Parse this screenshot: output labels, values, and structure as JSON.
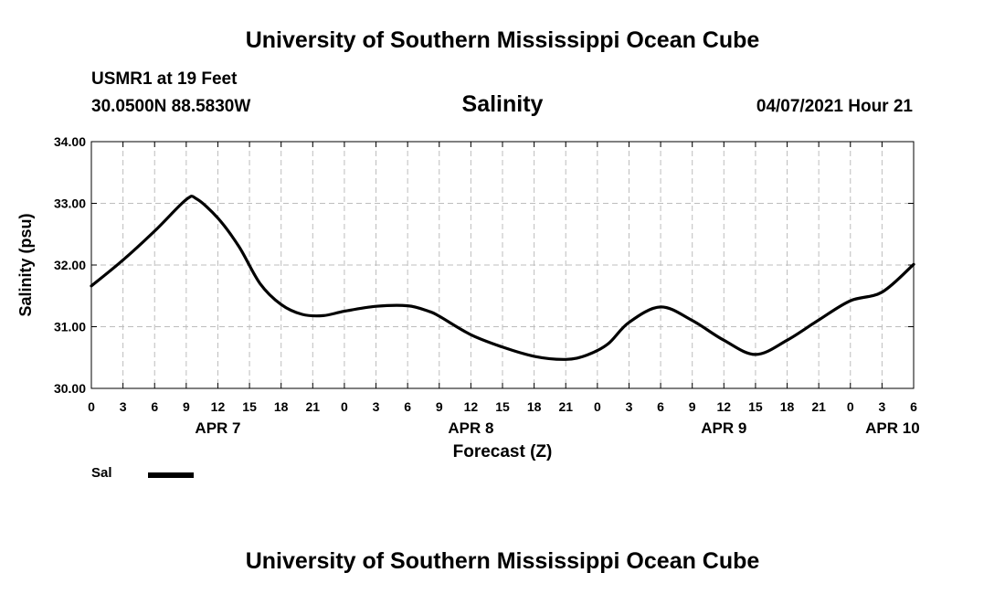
{
  "page": {
    "title_top": "University of Southern Mississippi Ocean Cube",
    "title_bottom": "University of Southern Mississippi Ocean Cube",
    "station": "USMR1 at 19 Feet",
    "coordinates": "30.0500N  88.5830W",
    "timestamp": "04/07/2021 Hour 21"
  },
  "chart_data": {
    "type": "line",
    "title": "Salinity",
    "xlabel": "Forecast (Z)",
    "ylabel": "Salinity (psu)",
    "ylim": [
      30.0,
      34.0
    ],
    "yticks": [
      "30.00",
      "31.00",
      "32.00",
      "33.00",
      "34.00"
    ],
    "xlim": [
      0,
      78
    ],
    "xtick_step_hours": 3,
    "xtick_labels": [
      "0",
      "3",
      "6",
      "9",
      "12",
      "15",
      "18",
      "21",
      "0",
      "3",
      "6",
      "9",
      "12",
      "15",
      "18",
      "21",
      "0",
      "3",
      "6",
      "9",
      "12",
      "15",
      "18",
      "21",
      "0",
      "3",
      "6"
    ],
    "day_labels": [
      {
        "label": "APR 7",
        "hour": 12
      },
      {
        "label": "APR 8",
        "hour": 36
      },
      {
        "label": "APR 9",
        "hour": 60
      },
      {
        "label": "APR 10",
        "hour": 76
      }
    ],
    "grid": true,
    "legend": [
      {
        "name": "Sal",
        "color": "#000000"
      }
    ],
    "series": [
      {
        "name": "Sal",
        "color": "#000000",
        "x": [
          0,
          3,
          6,
          9,
          10,
          12,
          14,
          16,
          18,
          20,
          22,
          24,
          27,
          30,
          32,
          33,
          36,
          39,
          42,
          45,
          47,
          49,
          51,
          54,
          57,
          60,
          63,
          66,
          69,
          72,
          75,
          78
        ],
        "values": [
          31.66,
          32.08,
          32.55,
          33.06,
          33.07,
          32.76,
          32.3,
          31.7,
          31.36,
          31.2,
          31.18,
          31.25,
          31.33,
          31.34,
          31.25,
          31.17,
          30.87,
          30.67,
          30.52,
          30.47,
          30.54,
          30.72,
          31.07,
          31.32,
          31.1,
          30.78,
          30.55,
          30.78,
          31.11,
          31.42,
          31.56,
          32.01
        ]
      }
    ]
  }
}
